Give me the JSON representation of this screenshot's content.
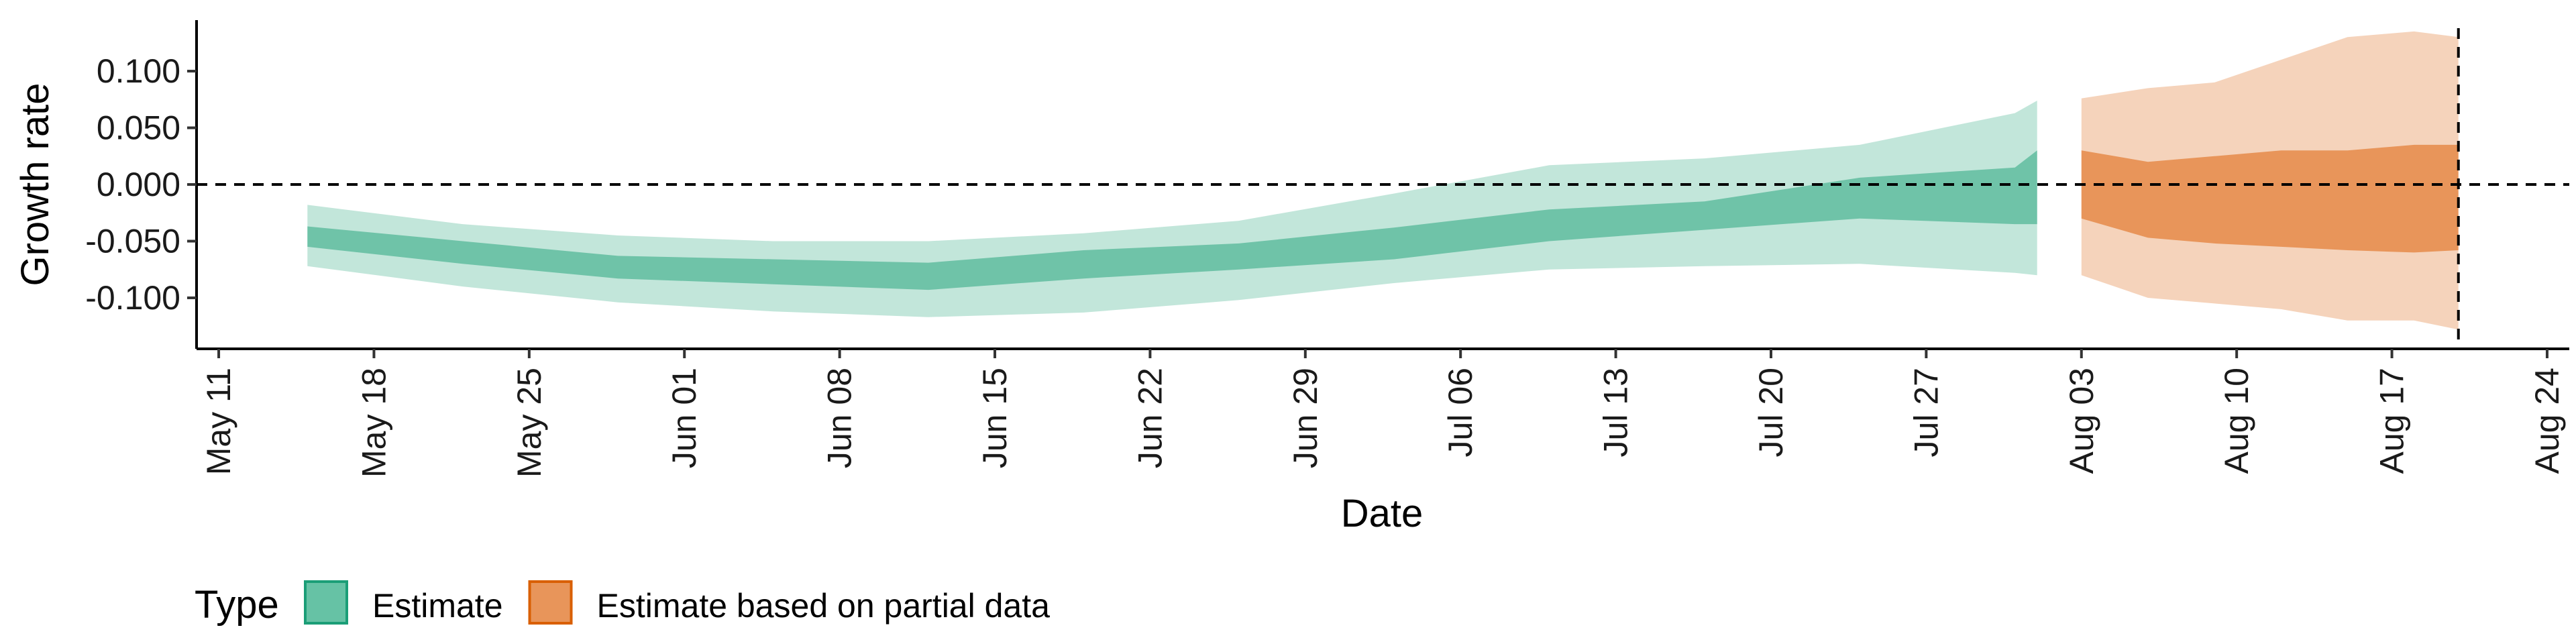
{
  "chart_data": {
    "type": "area",
    "xlabel": "Date",
    "ylabel": "Growth rate",
    "x_ticks": [
      "May 11",
      "May 18",
      "May 25",
      "Jun 01",
      "Jun 08",
      "Jun 15",
      "Jun 22",
      "Jun 29",
      "Jul 06",
      "Jul 13",
      "Jul 20",
      "Jul 27",
      "Aug 03",
      "Aug 10",
      "Aug 17",
      "Aug 24"
    ],
    "x_tick_dates": [
      "2020-05-11",
      "2020-05-18",
      "2020-05-25",
      "2020-06-01",
      "2020-06-08",
      "2020-06-15",
      "2020-06-22",
      "2020-06-29",
      "2020-07-06",
      "2020-07-13",
      "2020-07-20",
      "2020-07-27",
      "2020-08-03",
      "2020-08-10",
      "2020-08-17",
      "2020-08-24"
    ],
    "y_ticks": [
      "0.100",
      "0.050",
      "0.000",
      "-0.050",
      "-0.100"
    ],
    "y_tick_values": [
      0.1,
      0.05,
      0.0,
      -0.05,
      -0.1
    ],
    "xlim": [
      "2020-05-10",
      "2020-08-25"
    ],
    "ylim": [
      -0.145,
      0.145
    ],
    "hline": 0.0,
    "vline": "2020-08-20",
    "grid": false,
    "legend": {
      "title": "Type",
      "position": "bottom-left",
      "entries": [
        {
          "label": "Estimate",
          "fill": "#66C2A5",
          "stroke": "#1B9E77"
        },
        {
          "label": "Estimate based on partial data",
          "fill": "#E8955A",
          "stroke": "#D95F02"
        }
      ]
    },
    "series": [
      {
        "name": "Estimate",
        "colors": {
          "outer": "#C2E6DA",
          "inner": "#6FC3A8"
        },
        "dates": [
          "2020-05-15",
          "2020-05-22",
          "2020-05-29",
          "2020-06-05",
          "2020-06-12",
          "2020-06-19",
          "2020-06-26",
          "2020-07-03",
          "2020-07-10",
          "2020-07-17",
          "2020-07-24",
          "2020-07-31",
          "2020-08-01"
        ],
        "upper90": [
          -0.018,
          -0.035,
          -0.045,
          -0.05,
          -0.05,
          -0.043,
          -0.032,
          -0.008,
          0.017,
          0.023,
          0.035,
          0.063,
          0.074
        ],
        "upper50": [
          -0.037,
          -0.05,
          -0.063,
          -0.066,
          -0.069,
          -0.058,
          -0.052,
          -0.038,
          -0.022,
          -0.015,
          0.006,
          0.015,
          0.03
        ],
        "lower50": [
          -0.055,
          -0.07,
          -0.083,
          -0.088,
          -0.093,
          -0.083,
          -0.075,
          -0.066,
          -0.05,
          -0.04,
          -0.03,
          -0.035,
          -0.035
        ],
        "lower90": [
          -0.072,
          -0.09,
          -0.104,
          -0.112,
          -0.117,
          -0.113,
          -0.102,
          -0.087,
          -0.075,
          -0.072,
          -0.07,
          -0.078,
          -0.08
        ]
      },
      {
        "name": "Estimate based on partial data",
        "colors": {
          "outer": "#F5D3BB",
          "inner": "#E8955A"
        },
        "dates": [
          "2020-08-03",
          "2020-08-06",
          "2020-08-09",
          "2020-08-12",
          "2020-08-15",
          "2020-08-18",
          "2020-08-20"
        ],
        "upper90": [
          0.076,
          0.085,
          0.09,
          0.11,
          0.13,
          0.135,
          0.13
        ],
        "upper50": [
          0.03,
          0.02,
          0.025,
          0.03,
          0.03,
          0.035,
          0.035
        ],
        "lower50": [
          -0.03,
          -0.047,
          -0.052,
          -0.055,
          -0.058,
          -0.06,
          -0.058
        ],
        "lower90": [
          -0.08,
          -0.1,
          -0.105,
          -0.11,
          -0.12,
          -0.12,
          -0.128
        ]
      }
    ]
  }
}
